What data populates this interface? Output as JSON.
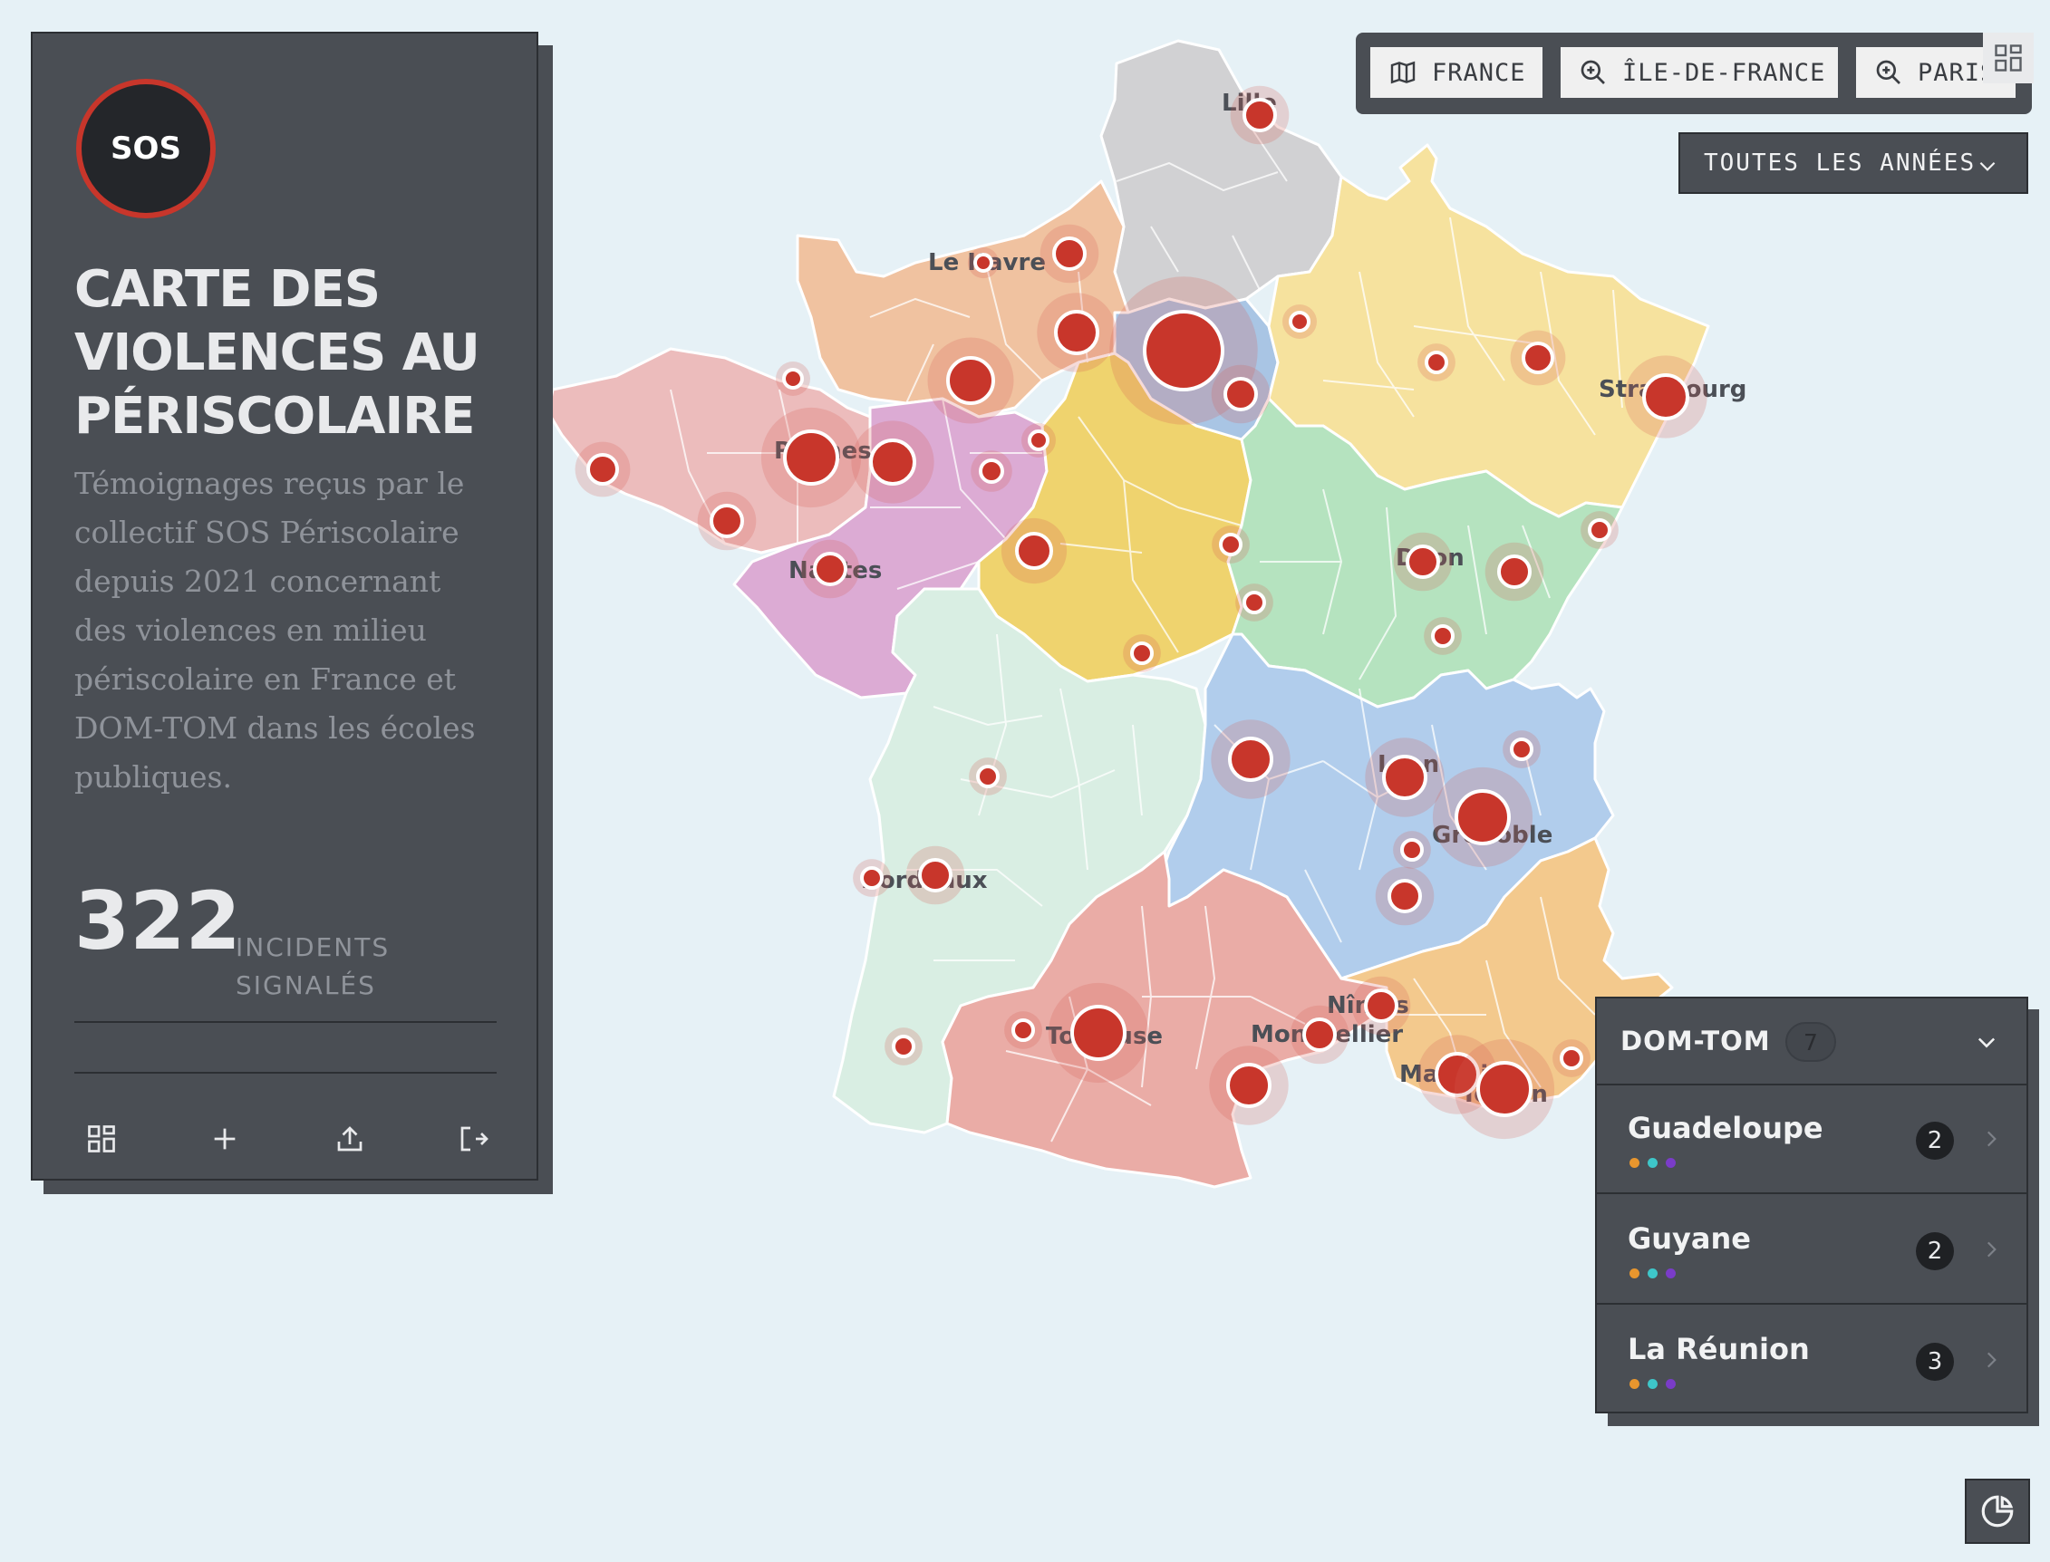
{
  "app": {
    "logo_text": "SOS",
    "title": "CARTE DES VIOLENCES AU PÉRISCOLAIRE",
    "description": "Témoignages reçus par le collectif SOS Périscolaire depuis 2021 concernant des violences en milieu périscolaire en France et DOM-TOM dans les écoles publiques.",
    "incident_count": "322",
    "incident_label": "INCIDENTS SIGNALÉS"
  },
  "toolbar": {
    "tools": [
      {
        "name": "grid-icon"
      },
      {
        "name": "plus-icon"
      },
      {
        "name": "upload-icon"
      },
      {
        "name": "logout-icon"
      }
    ]
  },
  "zoom": {
    "buttons": [
      {
        "label": "FRANCE",
        "icon": "map-icon"
      },
      {
        "label": "ÎLE-DE-FRANCE",
        "icon": "zoom-in-icon"
      },
      {
        "label": "PARIS",
        "icon": "zoom-in-icon"
      }
    ]
  },
  "filter": {
    "years_label": "TOUTES LES ANNÉES"
  },
  "domtom": {
    "title": "DOM-TOM",
    "count": "7",
    "items": [
      {
        "name": "Guadeloupe",
        "count": "2"
      },
      {
        "name": "Guyane",
        "count": "2"
      },
      {
        "name": "La Réunion",
        "count": "3"
      }
    ],
    "dot_colors": [
      "#e8962e",
      "#3ec6c9",
      "#7a3cc8"
    ]
  },
  "map": {
    "cities": [
      "Lille",
      "Le Havre",
      "Strasbourg",
      "Rennes",
      "Nantes",
      "Dijon",
      "Lyon",
      "Grenoble",
      "Bordeaux",
      "Toulouse",
      "Montpellier",
      "Nîmes",
      "Marseille",
      "Toulon"
    ],
    "marker_color": "#c8362b",
    "region_colors": {
      "hauts_de_france": "#d1d1d3",
      "normandie": "#f0c2a0",
      "bretagne": "#ecbcbc",
      "pays_de_la_loire": "#dcabd4",
      "centre_val_de_loire": "#efd36e",
      "ile_de_france": "#a9c5e4",
      "grand_est": "#f6e29e",
      "bourgogne_franche_comte": "#b5e3bf",
      "auvergne_rhone_alpes": "#b1cdec",
      "nouvelle_aquitaine": "#d9eee3",
      "occitanie": "#eaaca6",
      "paca": "#f3c98d"
    }
  }
}
